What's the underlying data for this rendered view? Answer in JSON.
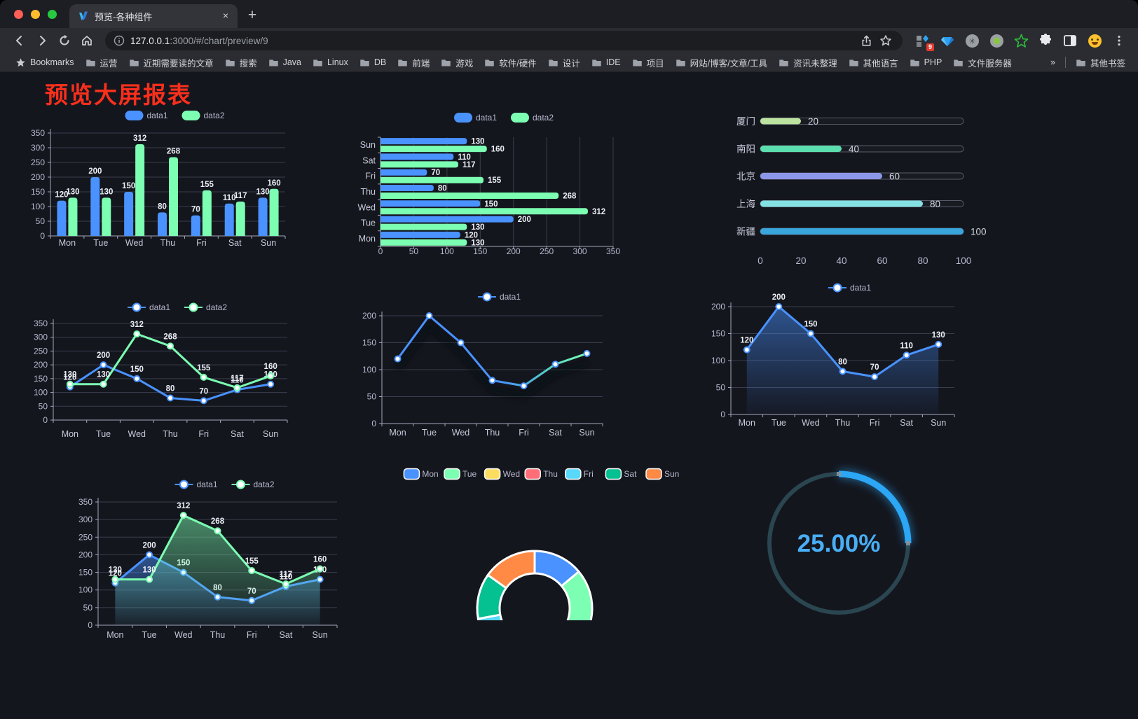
{
  "browser": {
    "tab": {
      "title": "预览-各种组件",
      "close_label": "×",
      "new_tab_label": "+"
    },
    "url": {
      "host": "127.0.0.1",
      "path": ":3000/#/chart/preview/9"
    },
    "bookmarks_bar": {
      "label": "Bookmarks",
      "items": [
        "运营",
        "近期需要读的文章",
        "搜索",
        "Java",
        "Linux",
        "DB",
        "前端",
        "游戏",
        "软件/硬件",
        "设计",
        "IDE",
        "项目",
        "网站/博客/文章/工具",
        "资讯未整理",
        "其他语言",
        "PHP",
        "文件服务器"
      ],
      "overflow": "»",
      "other": "其他书签"
    },
    "extensions": {
      "badge": "9"
    }
  },
  "page": {
    "title": "预览大屏报表",
    "title_color": "#fa2f1c"
  },
  "chart_data": [
    {
      "id": "c1",
      "type": "bar",
      "title": "",
      "categories": [
        "Mon",
        "Tue",
        "Wed",
        "Thu",
        "Fri",
        "Sat",
        "Sun"
      ],
      "series": [
        {
          "name": "data1",
          "color": "#4992ff",
          "values": [
            120,
            200,
            150,
            80,
            70,
            110,
            130
          ]
        },
        {
          "name": "data2",
          "color": "#7cffb2",
          "values": [
            130,
            130,
            312,
            268,
            155,
            117,
            160
          ]
        }
      ],
      "ylim": [
        0,
        350
      ],
      "yticks": [
        0,
        50,
        100,
        150,
        200,
        250,
        300,
        350
      ],
      "labels": true,
      "legend_position": "top",
      "grid": true
    },
    {
      "id": "c2",
      "type": "horizontal-bar",
      "categories": [
        "Mon",
        "Tue",
        "Wed",
        "Thu",
        "Fri",
        "Sat",
        "Sun"
      ],
      "display_order_top_to_bottom": [
        "Sun",
        "Sat",
        "Fri",
        "Thu",
        "Wed",
        "Tue",
        "Mon"
      ],
      "series": [
        {
          "name": "data1",
          "color": "#4992ff",
          "values": [
            120,
            200,
            150,
            80,
            70,
            110,
            130
          ]
        },
        {
          "name": "data2",
          "color": "#7cffb2",
          "values": [
            130,
            130,
            312,
            268,
            155,
            117,
            160
          ]
        }
      ],
      "xlim": [
        0,
        350
      ],
      "xticks": [
        0,
        50,
        100,
        150,
        200,
        250,
        300,
        350
      ],
      "labels": true,
      "legend_position": "top",
      "grid": true
    },
    {
      "id": "c3",
      "type": "progress-bars",
      "max": 100,
      "rows": [
        {
          "label": "厦门",
          "value": 20,
          "color": "#bce3a0"
        },
        {
          "label": "南阳",
          "value": 40,
          "color": "#5bdfae"
        },
        {
          "label": "北京",
          "value": 60,
          "color": "#8d97ea"
        },
        {
          "label": "上海",
          "value": 80,
          "color": "#83e1e4"
        },
        {
          "label": "新疆",
          "value": 100,
          "color": "#3aa5dc"
        }
      ],
      "xticks": [
        0,
        20,
        40,
        60,
        80,
        100
      ]
    },
    {
      "id": "c4",
      "type": "line",
      "categories": [
        "Mon",
        "Tue",
        "Wed",
        "Thu",
        "Fri",
        "Sat",
        "Sun"
      ],
      "series": [
        {
          "name": "data1",
          "color": "#4992ff",
          "values": [
            120,
            200,
            150,
            80,
            70,
            110,
            130
          ]
        },
        {
          "name": "data2",
          "color": "#7cffb2",
          "values": [
            130,
            130,
            312,
            268,
            155,
            117,
            160
          ]
        }
      ],
      "ylim": [
        0,
        350
      ],
      "yticks": [
        0,
        50,
        100,
        150,
        200,
        250,
        300,
        350
      ],
      "labels": true,
      "legend_position": "top",
      "grid": true
    },
    {
      "id": "c5",
      "type": "line",
      "categories": [
        "Mon",
        "Tue",
        "Wed",
        "Thu",
        "Fri",
        "Sat",
        "Sun"
      ],
      "series": [
        {
          "name": "data1",
          "color": "#4992ff",
          "color_gradient": [
            "#4992ff",
            "#7cffb2"
          ],
          "values": [
            120,
            200,
            150,
            80,
            70,
            110,
            130
          ]
        }
      ],
      "ylim": [
        0,
        200
      ],
      "yticks": [
        0,
        50,
        100,
        150,
        200
      ],
      "labels": false,
      "shadow": true,
      "legend_position": "top",
      "grid": true
    },
    {
      "id": "c6",
      "type": "area",
      "categories": [
        "Mon",
        "Tue",
        "Wed",
        "Thu",
        "Fri",
        "Sat",
        "Sun"
      ],
      "series": [
        {
          "name": "data1",
          "color": "#4992ff",
          "area": true,
          "values": [
            120,
            200,
            150,
            80,
            70,
            110,
            130
          ]
        }
      ],
      "ylim": [
        0,
        200
      ],
      "yticks": [
        0,
        50,
        100,
        150,
        200
      ],
      "labels": true,
      "legend_position": "top",
      "grid": true
    },
    {
      "id": "c7",
      "type": "area",
      "categories": [
        "Mon",
        "Tue",
        "Wed",
        "Thu",
        "Fri",
        "Sat",
        "Sun"
      ],
      "series": [
        {
          "name": "data1",
          "color": "#4992ff",
          "area": true,
          "values": [
            120,
            200,
            150,
            80,
            70,
            110,
            130
          ]
        },
        {
          "name": "data2",
          "color": "#7cffb2",
          "area": true,
          "values": [
            130,
            130,
            312,
            268,
            155,
            117,
            160
          ]
        }
      ],
      "ylim": [
        0,
        350
      ],
      "yticks": [
        0,
        50,
        100,
        150,
        200,
        250,
        300,
        350
      ],
      "labels": true,
      "legend_position": "top",
      "grid": true
    },
    {
      "id": "c8",
      "type": "donut",
      "categories": [
        "Mon",
        "Tue",
        "Wed",
        "Thu",
        "Fri",
        "Sat",
        "Sun"
      ],
      "values": [
        120,
        200,
        150,
        80,
        70,
        110,
        130
      ],
      "colors": [
        "#4992ff",
        "#7cffb2",
        "#fddd60",
        "#ff6e76",
        "#58d9f9",
        "#05c091",
        "#ff8a45"
      ],
      "legend_position": "top"
    },
    {
      "id": "c9",
      "type": "gauge",
      "value": 25,
      "label": "25.00%",
      "progress_color": "#2ba7f5",
      "track_color": "#2a4650",
      "text_color": "#49aef5"
    }
  ]
}
